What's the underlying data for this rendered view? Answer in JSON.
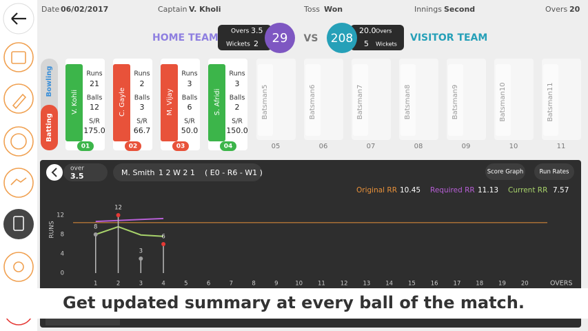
{
  "header": {
    "date_label": "Date",
    "date": "06/02/2017",
    "captain_label": "Captain",
    "captain": "V. Kholi",
    "toss_label": "Toss",
    "toss": "Won",
    "innings_label": "Innings",
    "innings": "Second",
    "overs_label": "Overs",
    "overs": 20
  },
  "scoreboard": {
    "home": {
      "name": "HOME TEAM",
      "overs_label": "Overs",
      "overs": 3.5,
      "wickets_label": "Wickets",
      "wickets": 2,
      "score": 29
    },
    "vs": "VS",
    "visitor": {
      "name": "VISITOR TEAM",
      "overs_label": "Overs",
      "overs": "20.0",
      "wickets_label": "Wickets",
      "wickets": 5,
      "score": 208
    }
  },
  "toggle": {
    "bowling": "Bowling",
    "batting": "Batting"
  },
  "stat_labels": {
    "runs": "Runs",
    "balls": "Balls",
    "sr": "S/R"
  },
  "batsmen": [
    {
      "name": "V. Kohli",
      "runs": 21,
      "balls": 12,
      "sr": "175.0",
      "number": "01",
      "color": "#3cb54a"
    },
    {
      "name": "C. Gayle",
      "runs": 2,
      "balls": 3,
      "sr": "66.7",
      "number": "02",
      "color": "#e8523a"
    },
    {
      "name": "M. Vijay",
      "runs": 3,
      "balls": 6,
      "sr": "50.0",
      "number": "03",
      "color": "#e8523a"
    },
    {
      "name": "S. Afridi",
      "runs": 3,
      "balls": 2,
      "sr": "150.0",
      "number": "04",
      "color": "#3cb54a"
    }
  ],
  "empty_slots": [
    {
      "name": "Batsman5",
      "number": "05"
    },
    {
      "name": "Batsman6",
      "number": "06"
    },
    {
      "name": "Batsman7",
      "number": "07"
    },
    {
      "name": "Batsman8",
      "number": "08"
    },
    {
      "name": "Batsman9",
      "number": "09"
    },
    {
      "name": "Batsman10",
      "number": "10"
    },
    {
      "name": "Batsman11",
      "number": "11"
    }
  ],
  "panel": {
    "over_label": "over",
    "over": 3.5,
    "bowler": "M. Smith",
    "balls": "1  2  W  2  1",
    "summary": "( E0 - R6 - W1 )",
    "buttons": [
      "Score Graph",
      "Run Rates"
    ]
  },
  "chart_data": {
    "type": "line",
    "y_label": "RUNS",
    "x_label": "OVERS",
    "xlim": [
      0,
      21
    ],
    "xticks": [
      1,
      2,
      3,
      4,
      5,
      6,
      7,
      8,
      9,
      10,
      11,
      12,
      13,
      14,
      15,
      16,
      17,
      18,
      19,
      20
    ],
    "ylim": [
      0,
      14
    ],
    "yticks": [
      0,
      4,
      8,
      12
    ],
    "runs": {
      "x": [
        1,
        2,
        3,
        4
      ],
      "values": [
        8,
        12,
        3,
        6
      ],
      "colors": [
        "#9e9e9e",
        "#e53935",
        "#9e9e9e",
        "#e53935"
      ]
    },
    "series": [
      {
        "name": "Original RR",
        "color": "#e8913a",
        "rate": 10.45
      },
      {
        "name": "Required RR",
        "color": "#b75fd6",
        "rate": 11.13,
        "x": [
          1,
          2,
          3,
          4
        ],
        "values": [
          10.7,
          10.9,
          11.1,
          11.3
        ]
      },
      {
        "name": "Current RR",
        "color": "#a8d36b",
        "rate": 7.57,
        "x": [
          1,
          2,
          3,
          4
        ],
        "values": [
          8,
          9.6,
          7.9,
          7.6
        ]
      }
    ]
  },
  "caption": "Get updated summary at every ball of the match."
}
